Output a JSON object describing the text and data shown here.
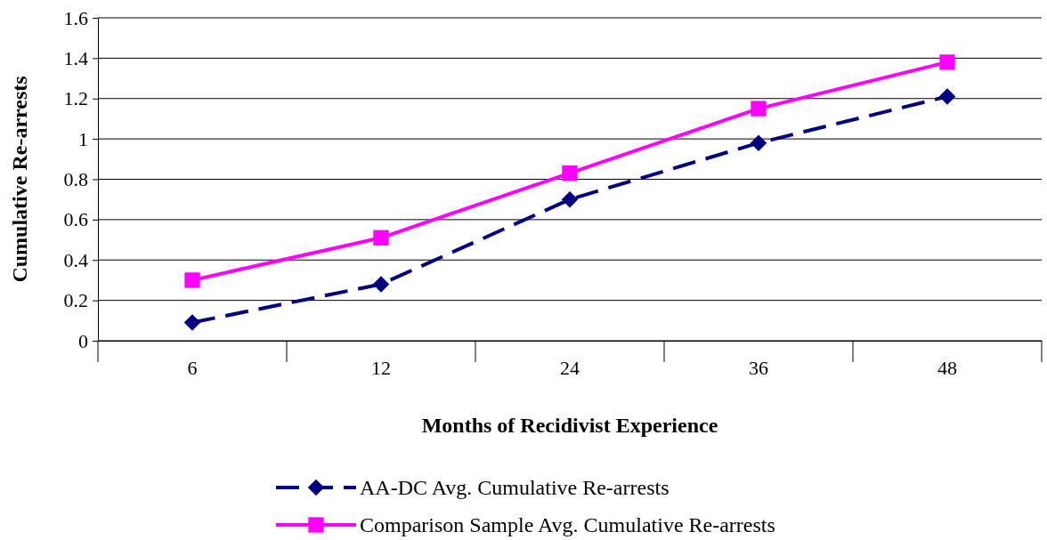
{
  "chart_data": {
    "type": "line",
    "xlabel": "Months of Recidivist Experience",
    "ylabel": "Cumulative Re-arrests",
    "categories": [
      "6",
      "12",
      "24",
      "36",
      "48"
    ],
    "ylim": [
      0,
      1.6
    ],
    "yticks": [
      0,
      0.2,
      0.4,
      0.6,
      0.8,
      1,
      1.2,
      1.4,
      1.6
    ],
    "grid": "y",
    "legend": "bottom",
    "series": [
      {
        "name": "AA-DC Avg. Cumulative Re-arrests",
        "color": "#000080",
        "marker": "diamond",
        "line_style": "dashed",
        "values": [
          0.09,
          0.28,
          0.7,
          0.98,
          1.21
        ]
      },
      {
        "name": "Comparison Sample Avg. Cumulative Re-arrests",
        "color": "#ff00ff",
        "marker": "square",
        "line_style": "solid",
        "values": [
          0.3,
          0.51,
          0.83,
          1.15,
          1.38
        ]
      }
    ]
  }
}
